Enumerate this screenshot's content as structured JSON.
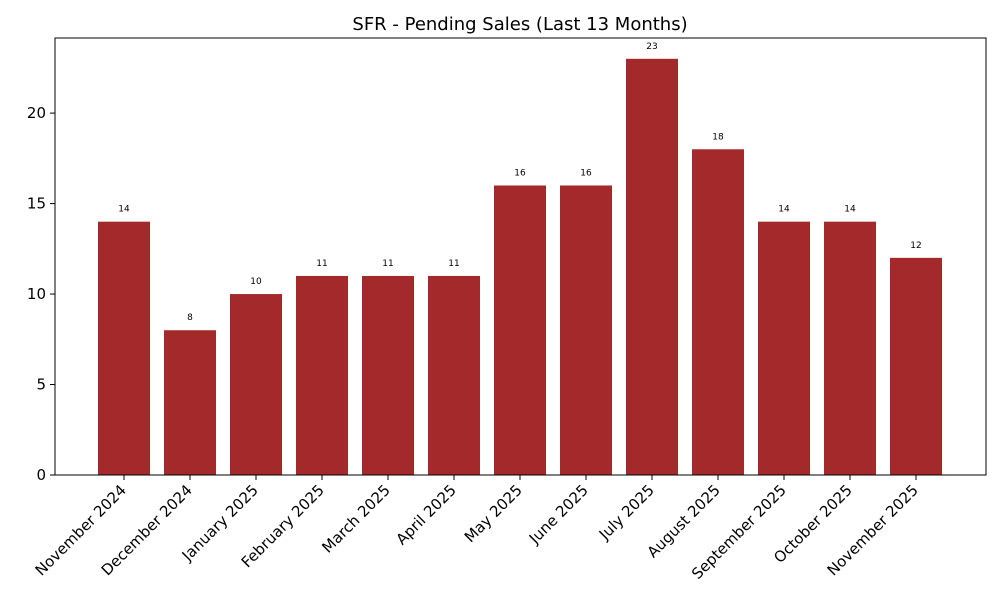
{
  "chart_data": {
    "type": "bar",
    "title": "SFR - Pending Sales (Last 13 Months)",
    "xlabel": "",
    "ylabel": "",
    "categories": [
      "November 2024",
      "December 2024",
      "January 2025",
      "February 2025",
      "March 2025",
      "April 2025",
      "May 2025",
      "June 2025",
      "July 2025",
      "August 2025",
      "September 2025",
      "October 2025",
      "November 2025"
    ],
    "values": [
      14,
      8,
      10,
      11,
      11,
      11,
      16,
      16,
      23,
      18,
      14,
      14,
      12
    ],
    "ylim": [
      0,
      24.15
    ],
    "yticks": [
      0,
      5,
      10,
      15,
      20
    ],
    "grid": false,
    "bar_color": "#a4292a",
    "data_labels": true
  }
}
